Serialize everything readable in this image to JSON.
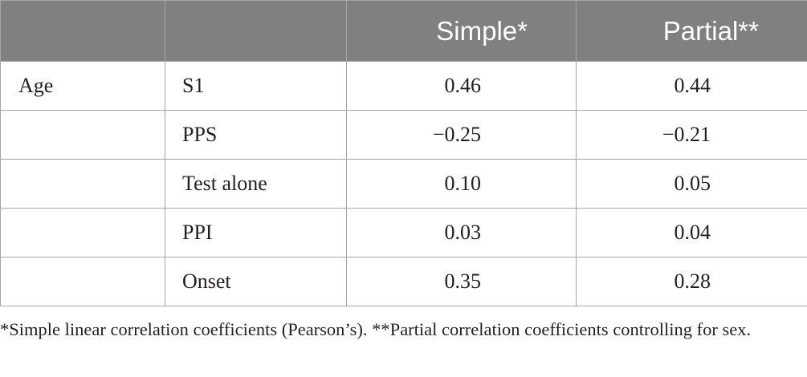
{
  "table": {
    "headers": [
      "",
      "",
      "Simple*",
      "Partial**"
    ],
    "rows": [
      {
        "variable": "Age",
        "measure": "S1",
        "simple": "0.46",
        "partial": "0.44"
      },
      {
        "variable": "",
        "measure": "PPS",
        "simple": "−0.25",
        "partial": "−0.21"
      },
      {
        "variable": "",
        "measure": "Test alone",
        "simple": "0.10",
        "partial": "0.05"
      },
      {
        "variable": "",
        "measure": "PPI",
        "simple": "0.03",
        "partial": "0.04"
      },
      {
        "variable": "",
        "measure": "Onset",
        "simple": "0.35",
        "partial": "0.28"
      }
    ]
  },
  "footnote": "*Simple linear correlation coefficients (Pearson’s). **Partial correlation coefficients controlling for sex.",
  "colors": {
    "header_bg": "#808080",
    "header_text": "#ffffff",
    "border": "#a6a6a6",
    "body_text": "#231f20"
  }
}
